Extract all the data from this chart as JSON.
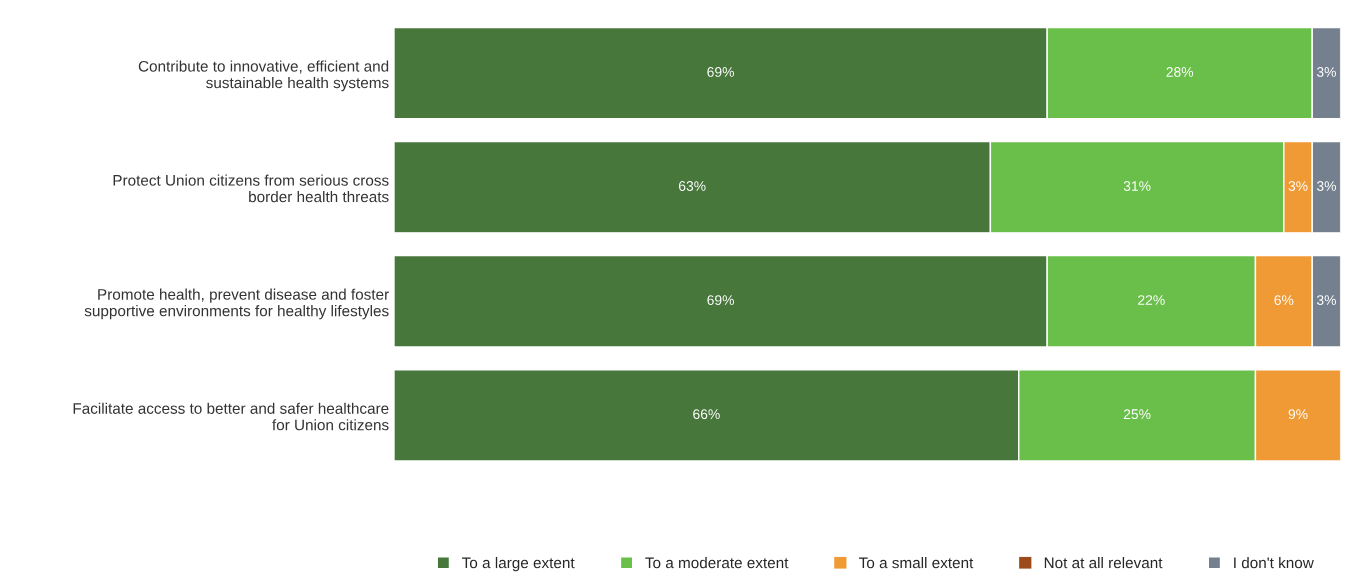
{
  "chart_data": {
    "type": "bar",
    "orientation": "horizontal",
    "stacked": true,
    "categories": [
      "Contribute to innovative, efficient and\nsustainable health systems",
      "Protect Union citizens from serious cross\nborder health threats",
      "Promote health, prevent disease and foster\nsupportive environments for healthy lifestyles",
      "Facilitate access to better and safer healthcare\nfor Union citizens"
    ],
    "series": [
      {
        "name": "To a large extent",
        "color": "#47773b",
        "values": [
          69,
          63,
          69,
          66
        ],
        "value_labels": [
          "69%",
          "63%",
          "69%",
          "66%"
        ]
      },
      {
        "name": "To a moderate extent",
        "color": "#6abf4b",
        "values": [
          28,
          31,
          22,
          25
        ],
        "value_labels": [
          "28%",
          "31%",
          "22%",
          "25%"
        ]
      },
      {
        "name": "To a small extent",
        "color": "#f09a36",
        "values": [
          0,
          3,
          6,
          9
        ],
        "value_labels": [
          null,
          "3%",
          "6%",
          "9%"
        ]
      },
      {
        "name": "Not at all relevant",
        "color": "#9c4a1a",
        "values": [
          0,
          0,
          0,
          0
        ],
        "value_labels": [
          null,
          null,
          null,
          null
        ]
      },
      {
        "name": "I don't know",
        "color": "#75808f",
        "values": [
          3,
          3,
          3,
          0
        ],
        "value_labels": [
          "3%",
          "3%",
          "3%",
          null
        ]
      }
    ],
    "legend": "bottom",
    "grid": false
  }
}
